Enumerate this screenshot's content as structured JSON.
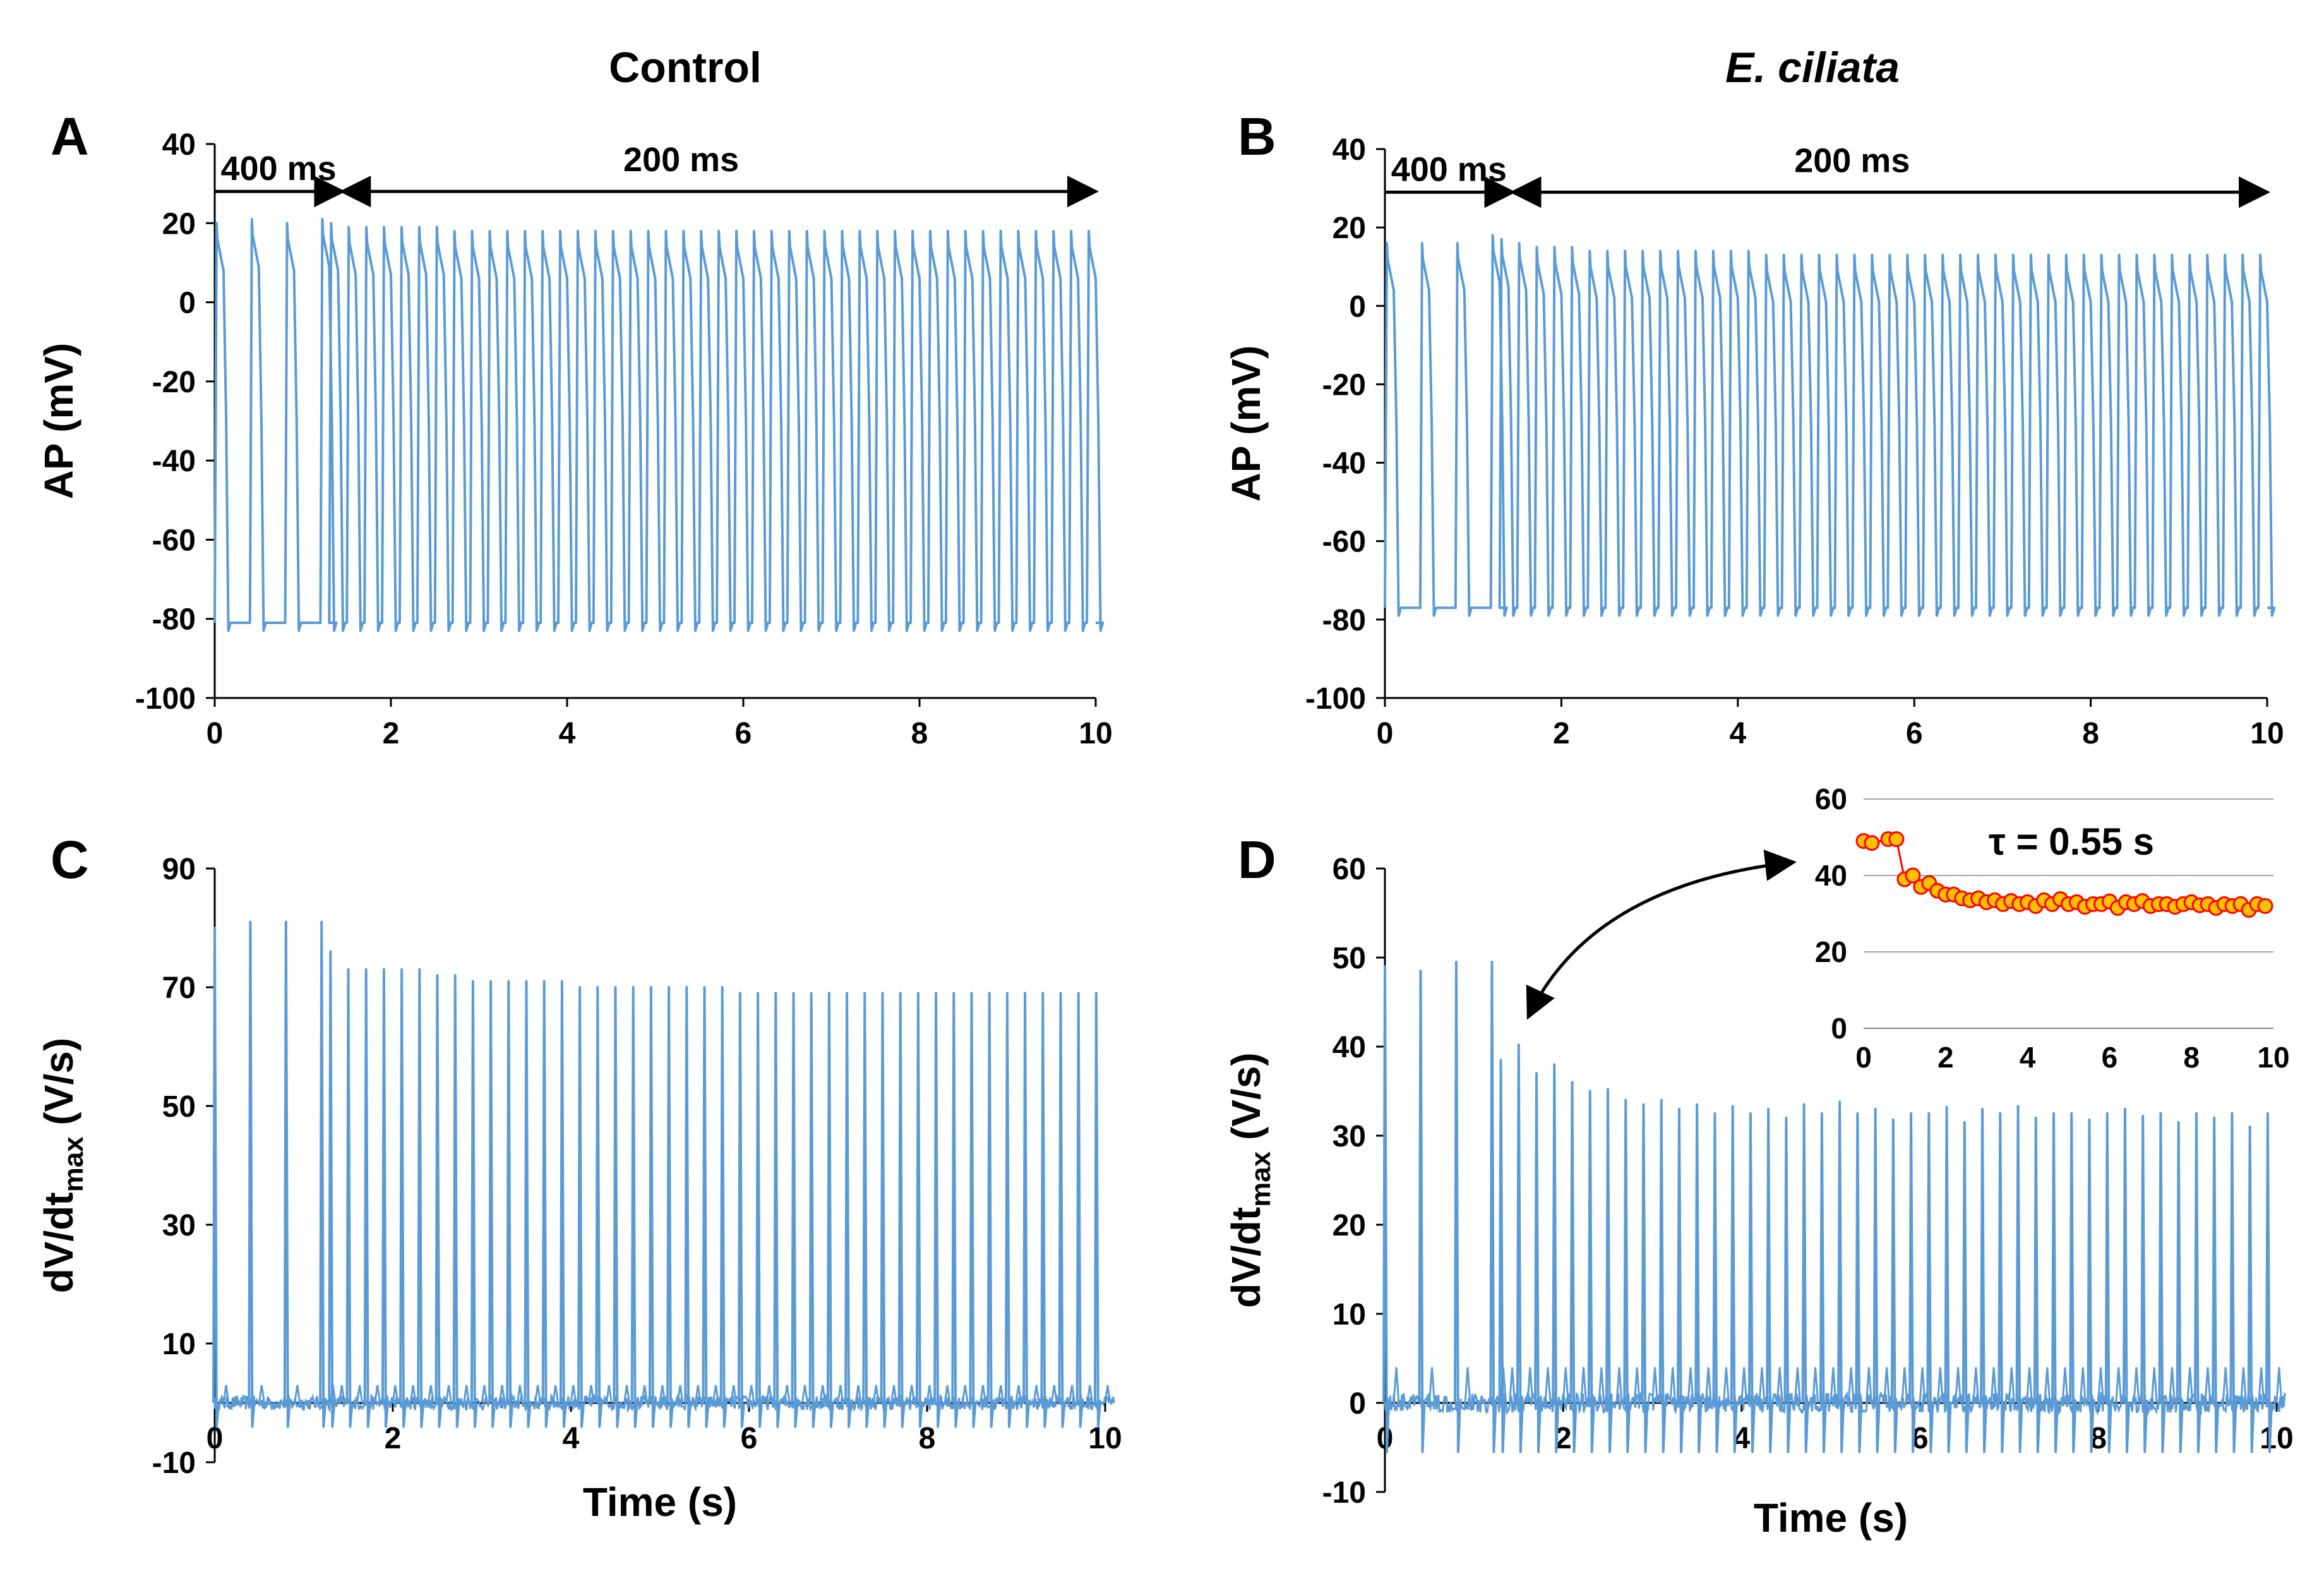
{
  "column_titles": {
    "left": "Control",
    "right": "E. ciliata"
  },
  "colors": {
    "trace": "#5b9bd5",
    "marker_fill": "#ffc000",
    "marker_edge": "#ff0000",
    "axis": "#000000",
    "grid": "#a6a6a6"
  },
  "chart_data": [
    {
      "panel": "A",
      "type": "line",
      "ylabel": "AP (mV)",
      "xlabel": "",
      "xlim": [
        0,
        10
      ],
      "ylim": [
        -100,
        40
      ],
      "xticks": [
        "0",
        "2",
        "4",
        "6",
        "8",
        "10"
      ],
      "yticks": [
        "40",
        "20",
        "0",
        "-20",
        "-40",
        "-60",
        "-80",
        "-100"
      ],
      "series": [
        {
          "name": "AP",
          "rest_mv": -81,
          "peak_mv": [
            20,
            21,
            20,
            21,
            20,
            19,
            19,
            19,
            19,
            19,
            19,
            18,
            18,
            18,
            18,
            18,
            18,
            18,
            18,
            18,
            18,
            18,
            18,
            18,
            18,
            18,
            18,
            18,
            18,
            18,
            18,
            18,
            18,
            18,
            18,
            18,
            18,
            18,
            18,
            18,
            18,
            18,
            18,
            18,
            18,
            18,
            18,
            18,
            18,
            18
          ],
          "min_mv": -83
        }
      ],
      "protocol": {
        "slow_label": "400 ms",
        "fast_label": "200 ms",
        "slow_cl_s": 0.4,
        "fast_cl_s": 0.2,
        "switch_s": 1.3,
        "end_s": 10.0
      }
    },
    {
      "panel": "B",
      "type": "line",
      "ylabel": "AP (mV)",
      "xlabel": "",
      "xlim": [
        0,
        10
      ],
      "ylim": [
        -100,
        40
      ],
      "xticks": [
        "0",
        "2",
        "4",
        "6",
        "8",
        "10"
      ],
      "yticks": [
        "40",
        "20",
        "0",
        "-20",
        "-40",
        "-60",
        "-80",
        "-100"
      ],
      "series": [
        {
          "name": "AP",
          "rest_mv": -77,
          "peak_mv": [
            16,
            16,
            16,
            18,
            17,
            16,
            15,
            15,
            15,
            14,
            14,
            14,
            14,
            14,
            14,
            14,
            14,
            14,
            14,
            13,
            13,
            13,
            13,
            13,
            13,
            13,
            13,
            13,
            13,
            13,
            13,
            13,
            13,
            13,
            13,
            13,
            13,
            13,
            13,
            13,
            13,
            13,
            13,
            13,
            13,
            13,
            13,
            13,
            13,
            13
          ],
          "min_mv": -79
        }
      ],
      "protocol": {
        "slow_label": "400 ms",
        "fast_label": "200 ms",
        "slow_cl_s": 0.4,
        "fast_cl_s": 0.2,
        "switch_s": 1.3,
        "end_s": 10.0
      }
    },
    {
      "panel": "C",
      "type": "line",
      "ylabel": "dV/dt",
      "ylabel_sub": "max",
      "ylabel_unit": " (V/s)",
      "xlabel": "Time (s)",
      "xlim": [
        0,
        10
      ],
      "ylim": [
        -10,
        90
      ],
      "xticks": [
        "0",
        "2",
        "4",
        "6",
        "8",
        "10"
      ],
      "yticks": [
        "90",
        "70",
        "50",
        "30",
        "10",
        "-10"
      ],
      "series": [
        {
          "name": "dV/dt max",
          "spike_peaks": [
            80,
            81,
            81,
            81,
            76,
            73,
            73,
            73,
            73,
            73,
            72,
            72,
            71,
            71,
            71,
            71,
            71,
            71,
            70,
            70,
            70,
            70,
            70,
            70,
            70,
            70,
            70,
            69,
            69,
            69,
            69,
            69,
            69,
            69,
            69,
            69,
            69,
            69,
            69,
            69,
            69,
            69,
            69,
            69,
            69,
            69,
            69,
            69,
            69,
            69
          ]
        }
      ]
    },
    {
      "panel": "D",
      "type": "line",
      "ylabel": "dV/dt",
      "ylabel_sub": "max",
      "ylabel_unit": " (V/s)",
      "xlabel": "Time (s)",
      "xlim": [
        0,
        10
      ],
      "ylim": [
        -10,
        60
      ],
      "xticks": [
        "0",
        "2",
        "4",
        "6",
        "8",
        "10"
      ],
      "yticks": [
        "60",
        "50",
        "40",
        "30",
        "20",
        "10",
        "0",
        "-10"
      ],
      "series": [
        {
          "name": "dV/dt max",
          "spike_peaks": [
            49,
            48.5,
            49.5,
            49.5,
            38.5,
            40.2,
            37,
            38,
            36,
            35,
            35.2,
            34,
            33.5,
            34,
            33,
            33.5,
            32.5,
            33.3,
            32.5,
            33,
            32,
            33.5,
            32.5,
            33.8,
            32.5,
            33,
            31.8,
            32.5,
            32.5,
            33.2,
            31.5,
            33,
            32.5,
            33.3,
            32,
            32.5,
            32.5,
            31.8,
            32.5,
            33,
            32.2,
            32.5,
            31.5,
            32.5,
            32,
            32.5,
            31,
            32.5,
            33,
            32
          ]
        }
      ]
    },
    {
      "panel": "D-inset",
      "type": "scatter",
      "annotation": "τ = 0.55 s",
      "xlim": [
        0,
        10
      ],
      "ylim": [
        0,
        60
      ],
      "xticks": [
        "0",
        "2",
        "4",
        "6",
        "8",
        "10"
      ],
      "yticks": [
        "60",
        "40",
        "20",
        "0"
      ],
      "series": [
        {
          "name": "dV/dt max",
          "x": [
            0,
            0.2,
            0.6,
            0.8,
            1.0,
            1.2,
            1.4,
            1.6,
            1.8,
            2.0,
            2.2,
            2.4,
            2.6,
            2.8,
            3.0,
            3.2,
            3.4,
            3.6,
            3.8,
            4.0,
            4.2,
            4.4,
            4.6,
            4.8,
            5.0,
            5.2,
            5.4,
            5.6,
            5.8,
            6.0,
            6.2,
            6.4,
            6.6,
            6.8,
            7.0,
            7.2,
            7.4,
            7.6,
            7.8,
            8.0,
            8.2,
            8.4,
            8.6,
            8.8,
            9.0,
            9.2,
            9.4,
            9.6,
            9.8
          ],
          "y": [
            49,
            48.5,
            49.5,
            49.5,
            39,
            40,
            37,
            38,
            36,
            35,
            35,
            34,
            33.5,
            34,
            33,
            33.5,
            32.5,
            33.3,
            32.5,
            33,
            32,
            33.5,
            32.5,
            33.8,
            32.5,
            33,
            31.8,
            32.5,
            32.5,
            33.2,
            31.5,
            33,
            32.5,
            33.3,
            32,
            32.5,
            32.5,
            31.8,
            32.5,
            33,
            32.2,
            32.5,
            31.5,
            32.5,
            32,
            32.5,
            31,
            32.5,
            32
          ]
        }
      ]
    }
  ]
}
